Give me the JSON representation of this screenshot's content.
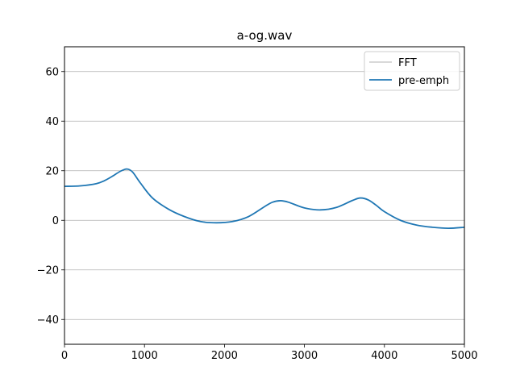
{
  "chart_data": {
    "type": "line",
    "title": "a-og.wav",
    "xlabel": "",
    "ylabel": "",
    "xlim": [
      0,
      5000
    ],
    "ylim": [
      -50,
      70
    ],
    "xticks": [
      0,
      1000,
      2000,
      3000,
      4000,
      5000
    ],
    "yticks": [
      -40,
      -20,
      0,
      20,
      40,
      60
    ],
    "xtick_labels": [
      "0",
      "1000",
      "2000",
      "3000",
      "4000",
      "5000"
    ],
    "ytick_labels": [
      "−40",
      "−20",
      "0",
      "20",
      "40",
      "60"
    ],
    "grid": "horizontal",
    "legend": {
      "placement": "top-right"
    },
    "series": [
      {
        "name": "FFT",
        "color": "#d3d3d3",
        "x": [],
        "y": []
      },
      {
        "name": "pre-emph",
        "color": "#1f77b4",
        "x": [
          0,
          200,
          400,
          500,
          600,
          700,
          780,
          850,
          950,
          1100,
          1300,
          1500,
          1700,
          1900,
          2100,
          2300,
          2500,
          2600,
          2700,
          2800,
          3000,
          3200,
          3400,
          3600,
          3700,
          3800,
          3900,
          4000,
          4200,
          4400,
          4600,
          4800,
          5000
        ],
        "y": [
          13.7,
          13.9,
          14.8,
          16,
          17.8,
          19.8,
          20.7,
          19.5,
          15,
          9,
          4.5,
          1.5,
          -0.5,
          -1,
          -0.5,
          1.5,
          5.5,
          7.3,
          7.9,
          7.3,
          5,
          4.2,
          5.2,
          8,
          9,
          8.2,
          6,
          3.5,
          0,
          -1.9,
          -2.8,
          -3.2,
          -2.8
        ]
      }
    ]
  }
}
